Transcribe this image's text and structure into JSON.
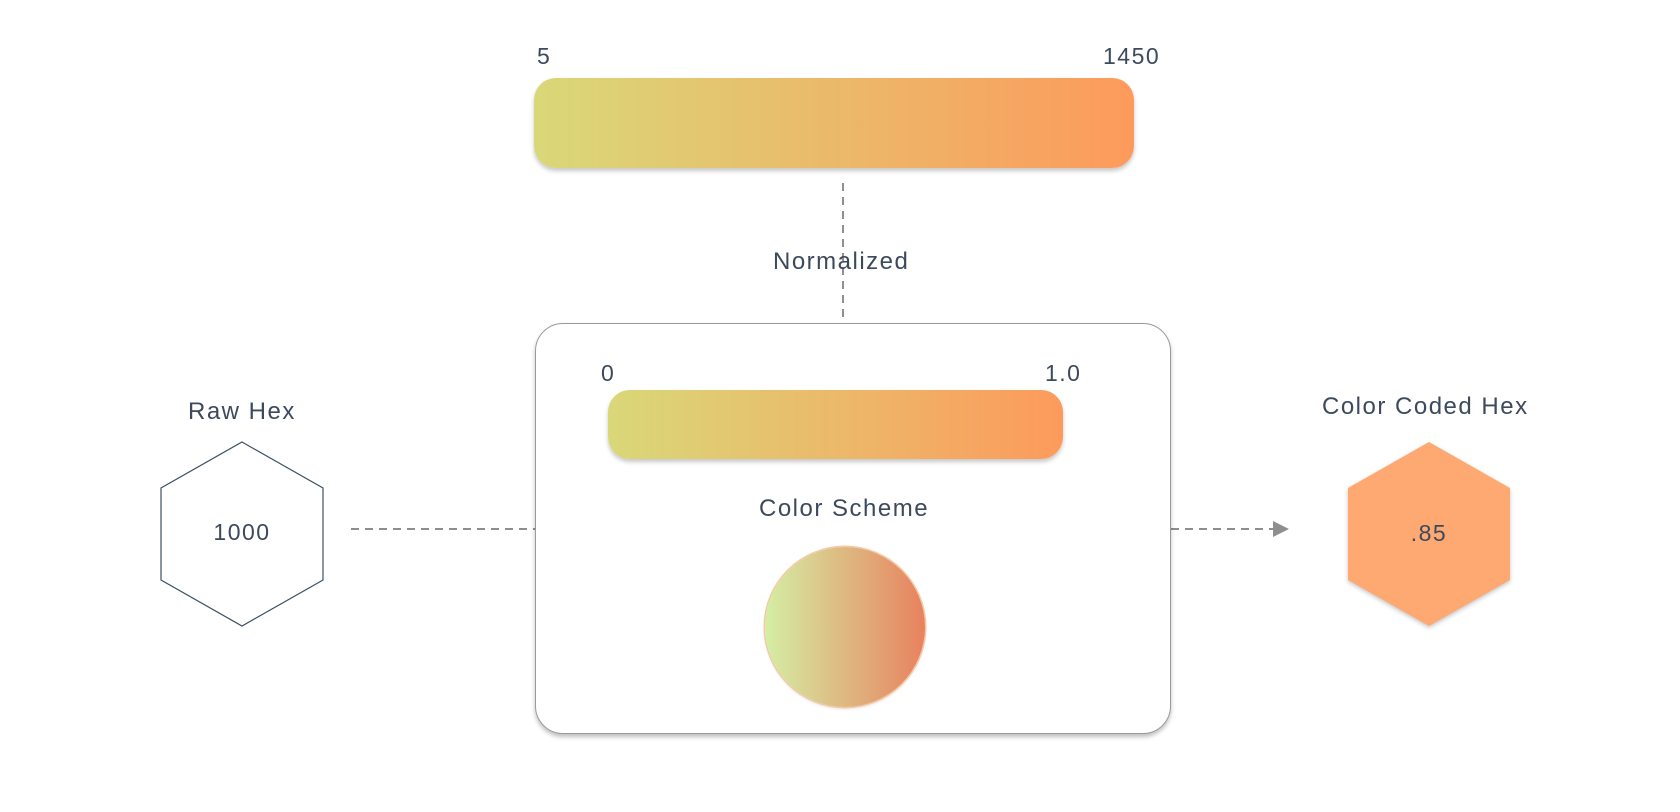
{
  "raw_range": {
    "min_label": "5",
    "max_label": "1450",
    "gradient_start": "#d9d878",
    "gradient_end": "#fd9a5c"
  },
  "normalization": {
    "label": "Normalized"
  },
  "color_scheme": {
    "label": "Color Scheme",
    "min_label": "0",
    "max_label": "1.0",
    "circle_gradient_start": "#d4eea4",
    "circle_gradient_end": "#e8825e"
  },
  "raw_hex": {
    "label": "Raw Hex",
    "value": "1000",
    "stroke_color": "#3d5166"
  },
  "color_coded_hex": {
    "label": "Color Coded Hex",
    "value": ".85",
    "fill_color": "#fea872"
  },
  "connector_color": "#8e8e8e"
}
